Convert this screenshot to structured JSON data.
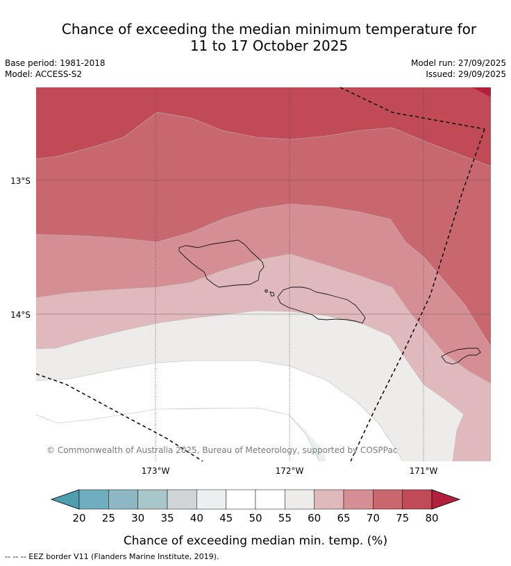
{
  "header": {
    "title_line1": "Chance of exceeding the median minimum temperature for",
    "title_line2": "11 to 17 October 2025",
    "base_period": "Base period: 1981-2018",
    "model": "Model: ACCESS-S2",
    "model_run": "Model run: 27/09/2025",
    "issued": "Issued: 29/09/2025"
  },
  "map": {
    "copyright": "© Commonwealth of Australia 2025, Bureau of Meteorology, supported by COSPPac",
    "lon_labels": [
      "173°W",
      "172°W",
      "171°W"
    ],
    "lat_labels": [
      "13°S",
      "14°S"
    ],
    "colors": {
      "c35_40": "#d0d6d8",
      "c40_45": "#eaf0f0",
      "c45_50": "#ffffff",
      "c50_55": "#ffffff",
      "c55_60": "#eeecea",
      "c60_65": "#e0b9bd",
      "c65_70": "#d68e95",
      "c70_75": "#c9676f",
      "c75_80": "#c04a56",
      "c80_plus": "#b3203c"
    }
  },
  "chart_data": {
    "type": "heatmap",
    "title": "Chance of exceeding the median minimum temperature for 11 to 17 October 2025",
    "variable": "Chance of exceeding median min. temp. (%)",
    "lon_range": [
      -173.9,
      -170.5
    ],
    "lat_range": [
      -15.1,
      -12.3
    ],
    "lon_ticks": [
      -173,
      -172,
      -171
    ],
    "lat_ticks": [
      -13,
      -14
    ],
    "bins": [
      20,
      25,
      30,
      35,
      40,
      45,
      50,
      55,
      60,
      65,
      70,
      75,
      80
    ],
    "bin_colors": [
      "#4e9eb0",
      "#6eaec0",
      "#8db7c3",
      "#a8c7ca",
      "#d0d6d8",
      "#eaf0f0",
      "#ffffff",
      "#ffffff",
      "#eeecea",
      "#e0b9bd",
      "#d68e95",
      "#c9676f",
      "#c04a56",
      "#b3203c"
    ],
    "contour_pattern": "Probabilities highest (75-80%+) in the north, decreasing southward to 45-55% south of Samoa; 60-75% band curving southeast past American Samoa",
    "regions": [
      "Samoa (Savai'i, Upolu)",
      "American Samoa (Tutuila)"
    ]
  },
  "colorbar": {
    "ticks": [
      "20",
      "25",
      "30",
      "35",
      "40",
      "45",
      "50",
      "55",
      "60",
      "65",
      "70",
      "75",
      "80"
    ],
    "label": "Chance of exceeding median min. temp. (%)"
  },
  "footer": {
    "eez_note": "--  --  -- EEZ border V11 (Flanders Marine Institute, 2019)."
  }
}
